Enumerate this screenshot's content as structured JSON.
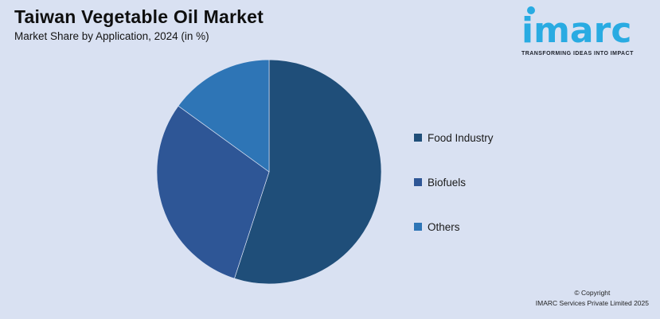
{
  "page": {
    "background": "#D9E1F2"
  },
  "header": {
    "title": "Taiwan Vegetable Oil Market",
    "subtitle": "Market Share by Application, 2024 (in %)"
  },
  "logo": {
    "wordmark": "imarc",
    "tagline": "TRANSFORMING IDEAS INTO IMPACT",
    "brand_color": "#29ABE2"
  },
  "chart_data": {
    "type": "pie",
    "title": "Taiwan Vegetable Oil Market — Market Share by Application, 2024 (in %)",
    "categories": [
      "Food Industry",
      "Biofuels",
      "Others"
    ],
    "values": [
      55,
      30,
      15
    ],
    "colors": [
      "#1F4E79",
      "#2E5696",
      "#2E75B6"
    ],
    "unit": "%",
    "start_angle_deg": 0,
    "direction": "clockwise",
    "legend_position": "right",
    "data_labels": false
  },
  "footer": {
    "line1": "© Copyright",
    "line2": "IMARC Services Private Limited 2025"
  }
}
